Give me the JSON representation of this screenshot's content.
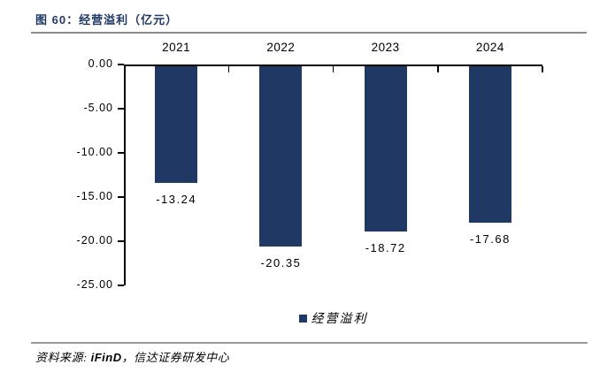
{
  "header": {
    "title": "图 60：经营溢利（亿元）"
  },
  "chart_data": {
    "type": "bar",
    "title": "图 60：经营溢利（亿元）",
    "categories": [
      "2021",
      "2022",
      "2023",
      "2024"
    ],
    "values": [
      -13.24,
      -20.35,
      -18.72,
      -17.68
    ],
    "data_labels": [
      "-13.24",
      "-20.35",
      "-18.72",
      "-17.68"
    ],
    "xlabel": "",
    "ylabel": "",
    "ylim": [
      -25,
      0
    ],
    "y_ticks": [
      0,
      -5,
      -10,
      -15,
      -20,
      -25
    ],
    "y_tick_labels": [
      "0.00",
      "-5.00",
      "-10.00",
      "-15.00",
      "-20.00",
      "-25.00"
    ],
    "grid": false,
    "legend_position": "bottom",
    "legend": [
      {
        "label": "经营溢利",
        "color": "#1f3864"
      }
    ],
    "colors": {
      "bar": "#1f3864",
      "axis": "#000000",
      "title": "#1f3864",
      "rule": "#8c8c8c"
    }
  },
  "legend": {
    "label": "经营溢利"
  },
  "footer": {
    "source_prefix": "资料来源: ",
    "source_ifind": "iFinD",
    "source_rest": "，信达证券研发中心"
  }
}
